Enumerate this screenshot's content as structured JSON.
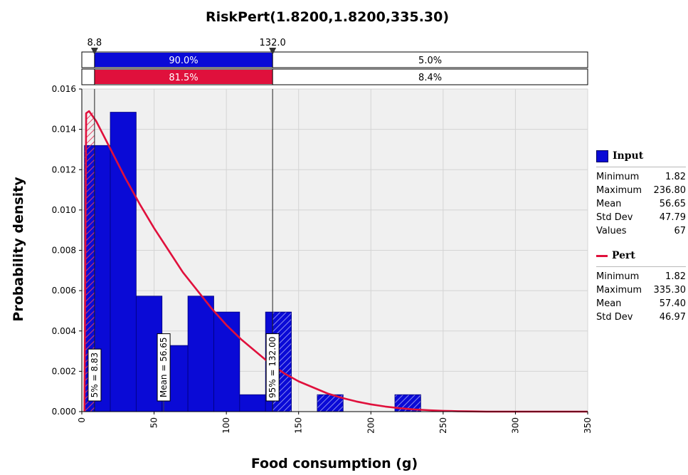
{
  "chart_data": {
    "type": "bar",
    "title": "RiskPert(1.8200,1.8200,335.30)",
    "xlabel": "Food consumption (g)",
    "ylabel": "Probability density",
    "xlim": [
      0,
      350
    ],
    "ylim": [
      0,
      0.016
    ],
    "x_ticks": [
      "0",
      "50",
      "100",
      "150",
      "200",
      "250",
      "300",
      "350"
    ],
    "x_tick_values": [
      0,
      50,
      100,
      150,
      200,
      250,
      300,
      350
    ],
    "y_ticks": [
      "0.000",
      "0.002",
      "0.004",
      "0.006",
      "0.008",
      "0.010",
      "0.012",
      "0.014",
      "0.016"
    ],
    "y_tick_values": [
      0,
      0.002,
      0.004,
      0.006,
      0.008,
      0.01,
      0.012,
      0.014,
      0.016
    ],
    "grid": true,
    "histogram": {
      "name": "Input",
      "bins": [
        {
          "x0": 1.82,
          "x1": 19.7,
          "value": 0.0132
        },
        {
          "x0": 19.7,
          "x1": 37.6,
          "value": 0.01485
        },
        {
          "x0": 37.6,
          "x1": 55.5,
          "value": 0.00573
        },
        {
          "x0": 55.5,
          "x1": 73.4,
          "value": 0.00328
        },
        {
          "x0": 73.4,
          "x1": 91.3,
          "value": 0.00573
        },
        {
          "x0": 91.3,
          "x1": 109.2,
          "value": 0.00494
        },
        {
          "x0": 109.2,
          "x1": 127.1,
          "value": 0.00084
        },
        {
          "x0": 127.1,
          "x1": 145.0,
          "value": 0.00494
        },
        {
          "x0": 145.0,
          "x1": 162.9,
          "value": 0.0
        },
        {
          "x0": 162.9,
          "x1": 180.8,
          "value": 0.00084
        },
        {
          "x0": 180.8,
          "x1": 198.7,
          "value": 0.0
        },
        {
          "x0": 198.7,
          "x1": 216.6,
          "value": 0.0
        },
        {
          "x0": 216.6,
          "x1": 234.5,
          "value": 0.00084
        }
      ]
    },
    "curve": {
      "name": "Pert",
      "x": [
        1.82,
        3,
        5,
        10,
        15,
        20,
        30,
        40,
        50,
        60,
        70,
        80,
        90,
        100,
        110,
        120,
        130,
        140,
        150,
        160,
        170,
        180,
        190,
        200,
        210,
        220,
        230,
        240,
        250,
        260,
        270,
        280,
        290,
        300,
        320,
        335.3,
        350
      ],
      "y": [
        0.0,
        0.0148,
        0.0149,
        0.0144,
        0.0137,
        0.013,
        0.0116,
        0.0103,
        0.0091,
        0.008,
        0.0069,
        0.006,
        0.0051,
        0.0043,
        0.0036,
        0.003,
        0.0024,
        0.0019,
        0.0015,
        0.0012,
        0.0009,
        0.00068,
        0.0005,
        0.00036,
        0.00025,
        0.00017,
        0.00011,
        7e-05,
        4e-05,
        2e-05,
        1e-05,
        0.0,
        0.0,
        0.0,
        0.0,
        0.0,
        0.0
      ]
    },
    "markers": [
      {
        "x": 8.83,
        "label": "5% = 8.83"
      },
      {
        "x": 56.65,
        "label": "Mean = 56.65"
      },
      {
        "x": 132.0,
        "label": "95% = 132.00"
      }
    ],
    "delimiters": {
      "left_label": "8.8",
      "left_x": 8.8,
      "right_label": "132.0",
      "right_x": 132.0,
      "top_bar": [
        "",
        "90.0%",
        "5.0%"
      ],
      "bottom_bar": [
        "",
        "81.5%",
        "8.4%"
      ]
    },
    "colors": {
      "input": "#0a0ad6",
      "pert": "#e0103c",
      "plot_bg": "#f0f0f0",
      "grid": "#d4d4d4"
    }
  },
  "legend": {
    "input": {
      "title": "Input",
      "stats": [
        {
          "label": "Minimum",
          "value": "1.82"
        },
        {
          "label": "Maximum",
          "value": "236.80"
        },
        {
          "label": "Mean",
          "value": "56.65"
        },
        {
          "label": "Std Dev",
          "value": "47.79"
        },
        {
          "label": "Values",
          "value": "67"
        }
      ]
    },
    "pert": {
      "title": "Pert",
      "stats": [
        {
          "label": "Minimum",
          "value": "1.82"
        },
        {
          "label": "Maximum",
          "value": "335.30"
        },
        {
          "label": "Mean",
          "value": "57.40"
        },
        {
          "label": "Std Dev",
          "value": "46.97"
        }
      ]
    }
  }
}
